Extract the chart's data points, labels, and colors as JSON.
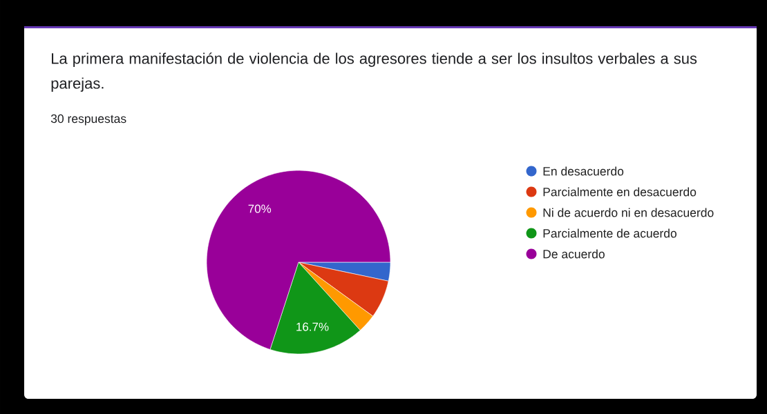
{
  "chart_data": {
    "type": "pie",
    "title": "La primera manifestación de violencia de los agresores tiende a ser los insultos verbales a sus parejas.",
    "subtitle": "30 respuestas",
    "categories": [
      "En desacuerdo",
      "Parcialmente en desacuerdo",
      "Ni de acuerdo ni en desacuerdo",
      "Parcialmente de acuerdo",
      "De acuerdo"
    ],
    "values": [
      3.3,
      6.7,
      3.3,
      16.7,
      70
    ],
    "colors": [
      "#3366cc",
      "#dc3912",
      "#ff9900",
      "#109618",
      "#990099"
    ],
    "value_labels": [
      null,
      null,
      null,
      "16.7%",
      "70%"
    ],
    "legend": "right"
  }
}
